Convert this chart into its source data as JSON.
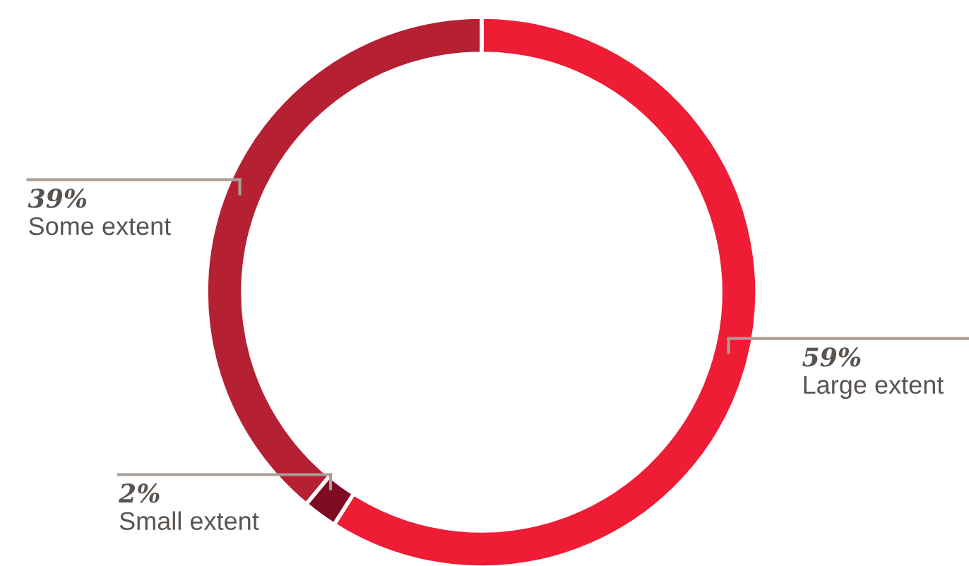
{
  "chart_data": {
    "type": "donut",
    "categories": [
      "Large extent",
      "Small extent",
      "Some extent"
    ],
    "values": [
      59,
      2,
      39
    ],
    "value_labels": [
      "59%",
      "2%",
      "39%"
    ],
    "colors": [
      "#ee1c34",
      "#7d0c23",
      "#b52033"
    ],
    "legend": false
  }
}
